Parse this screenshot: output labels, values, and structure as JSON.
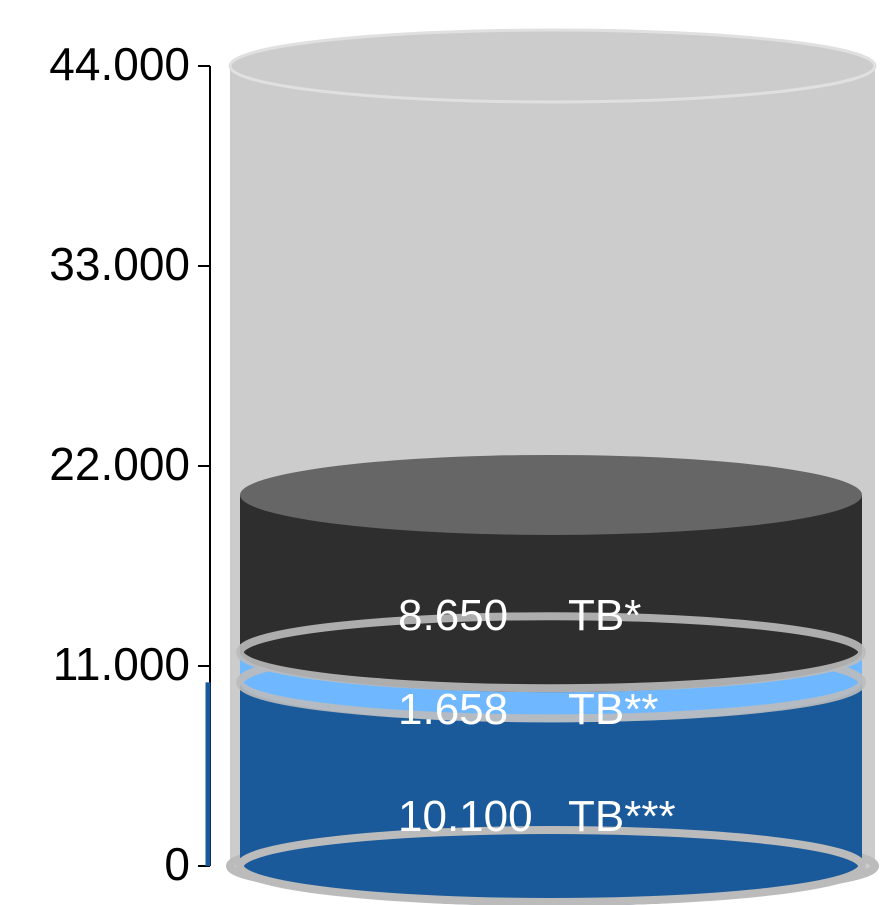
{
  "chart_data": {
    "type": "stacked-cylinder",
    "series": [
      {
        "name": "TB***",
        "color": "#1a5a9a",
        "values": [
          10100
        ],
        "value_labels": [
          "10.100"
        ]
      },
      {
        "name": "TB**",
        "color": "#6fb8ff",
        "values": [
          1658
        ],
        "value_labels": [
          "1.658"
        ]
      },
      {
        "name": "TB*",
        "color": "#2e2e2e",
        "values": [
          8650
        ],
        "value_labels": [
          "8.650"
        ]
      }
    ],
    "ylim": [
      0,
      44000
    ],
    "yticks": [
      0,
      {
        "value": 11000,
        "label": "11.000"
      },
      {
        "value": 22000,
        "label": "22.000"
      },
      {
        "value": 33000,
        "label": "33.000"
      },
      {
        "value": 44000,
        "label": "44.000"
      }
    ],
    "background_color": "#cccccc"
  }
}
